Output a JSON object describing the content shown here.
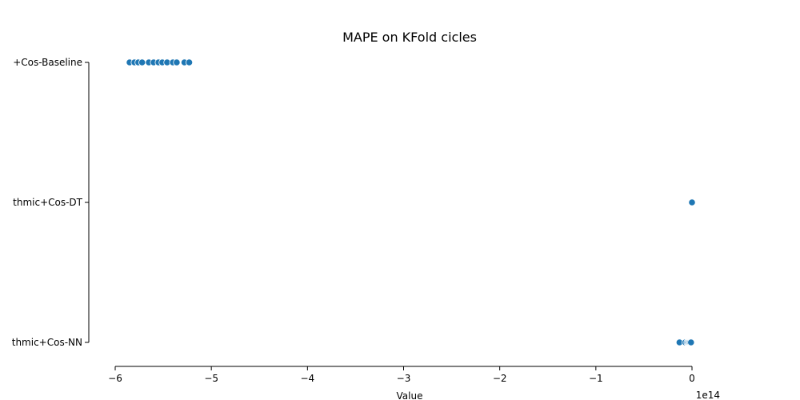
{
  "chart_data": {
    "type": "scatter",
    "title": "MAPE on KFold cicles",
    "xlabel": "Value",
    "ylabel": "",
    "x_offset_label": "1e14",
    "x_scale_factor": 100000000000000.0,
    "xlim": [
      -6.0,
      0.0
    ],
    "x_ticks": [
      -6,
      -5,
      -4,
      -3,
      -2,
      -1,
      0
    ],
    "x_tick_labels": [
      "−6",
      "−5",
      "−4",
      "−3",
      "−2",
      "−1",
      "0"
    ],
    "categories": [
      "+Cos-Baseline",
      "thmic+Cos-DT",
      "thmic+Cos-NN"
    ],
    "point_color": "#1f77b4",
    "grid": false,
    "series": [
      {
        "category": "+Cos-Baseline",
        "x": [
          -5.85,
          -5.8,
          -5.76,
          -5.72,
          -5.65,
          -5.6,
          -5.55,
          -5.51,
          -5.46,
          -5.4,
          -5.36,
          -5.28,
          -5.23
        ]
      },
      {
        "category": "thmic+Cos-DT",
        "x": [
          -0.005,
          -0.003,
          -0.002,
          -0.001,
          0.0
        ]
      },
      {
        "category": "thmic+Cos-NN",
        "x": [
          -0.13,
          -0.07,
          -0.05,
          -0.04,
          -0.03,
          -0.02,
          -0.01
        ]
      }
    ]
  }
}
